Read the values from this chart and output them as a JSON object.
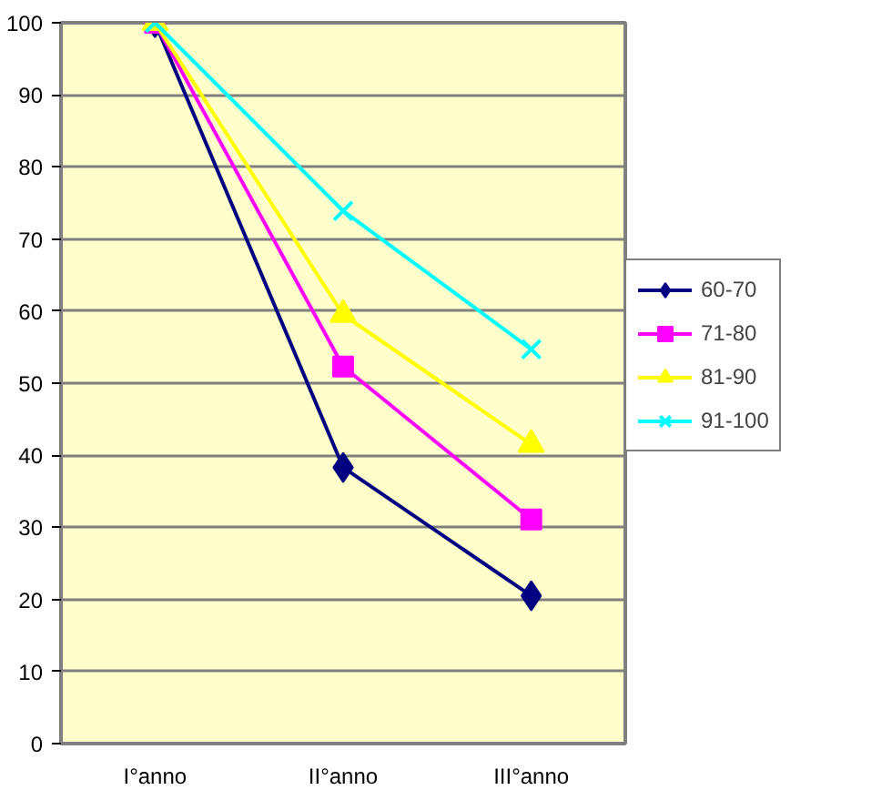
{
  "chart_data": {
    "type": "line",
    "categories": [
      "I°anno",
      "II°anno",
      "III°anno"
    ],
    "ylim": [
      0,
      100
    ],
    "yticks": [
      0,
      10,
      20,
      30,
      40,
      50,
      60,
      70,
      80,
      90,
      100
    ],
    "grid": "y",
    "legend": "right",
    "series": [
      {
        "name": "60-70",
        "color": "#000080",
        "marker": "diamond",
        "values": [
          100,
          38.3,
          20.5
        ]
      },
      {
        "name": "71-80",
        "color": "#ff00ff",
        "marker": "square",
        "values": [
          100,
          52.3,
          31.1
        ]
      },
      {
        "name": "81-90",
        "color": "#ffff00",
        "marker": "triangle",
        "values": [
          100,
          59.5,
          41.5
        ]
      },
      {
        "name": "91-100",
        "color": "#00ffff",
        "marker": "cross",
        "values": [
          100,
          73.9,
          54.7
        ]
      }
    ]
  }
}
